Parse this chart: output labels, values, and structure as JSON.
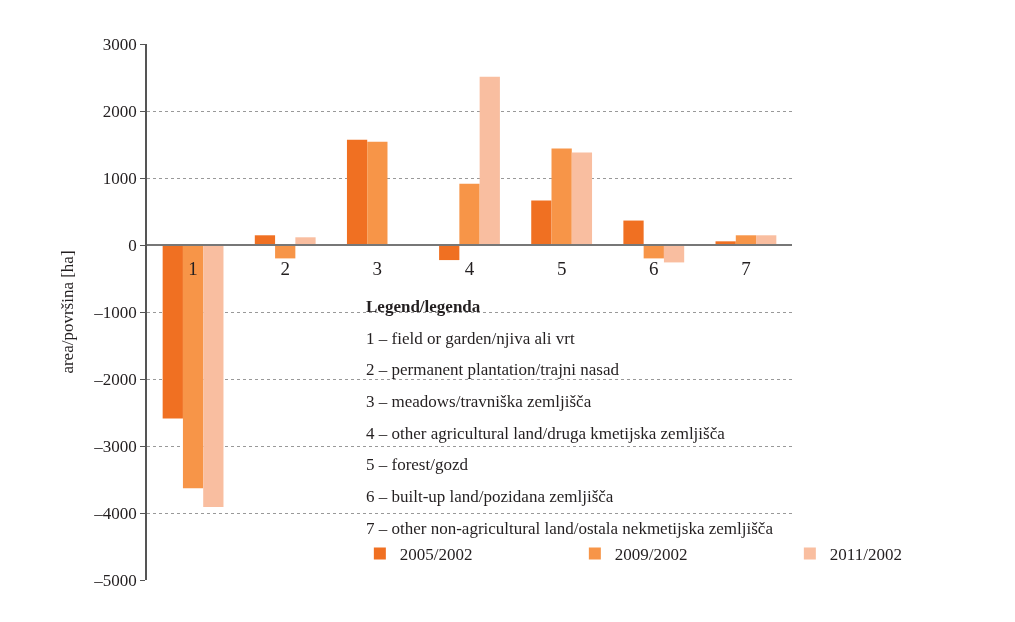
{
  "chart_data": {
    "type": "bar",
    "ylabel": "area/površina [ha]",
    "categories": [
      "1",
      "2",
      "3",
      "4",
      "5",
      "6",
      "7"
    ],
    "series": [
      {
        "name": "2005/2002",
        "color": "#f07022",
        "values": [
          -2590,
          145,
          1570,
          -225,
          665,
          365,
          55
        ]
      },
      {
        "name": "2009/2002",
        "color": "#f79548",
        "values": [
          -3630,
          -200,
          1540,
          915,
          1440,
          -200,
          145
        ]
      },
      {
        "name": "2011/2002",
        "color": "#f9bea0",
        "values": [
          -3910,
          115,
          0,
          2510,
          1380,
          -260,
          145
        ]
      }
    ],
    "ylim": [
      -5000,
      3000
    ],
    "yticks": [
      {
        "value": -5000,
        "label": "–5000"
      },
      {
        "value": -4000,
        "label": "–4000"
      },
      {
        "value": -3000,
        "label": "–3000"
      },
      {
        "value": -2000,
        "label": "–2000"
      },
      {
        "value": -1000,
        "label": "–1000"
      },
      0,
      1000,
      2000,
      3000
    ],
    "grid": "y",
    "legend": "bottom right",
    "annotations": [
      "Legend/legenda",
      "1 – field or garden/njiva ali vrt",
      "2 – permanent plantation/trajni nasad",
      "3 – meadows/travniška zemljišča",
      "4 – other agricultural land/druga kmetijska zemljišča",
      "5 – forest/gozd",
      "6 – built-up land/pozidana zemljišča",
      "7 – other non-agricultural land/ostala nekmetijska zemljišča"
    ]
  }
}
